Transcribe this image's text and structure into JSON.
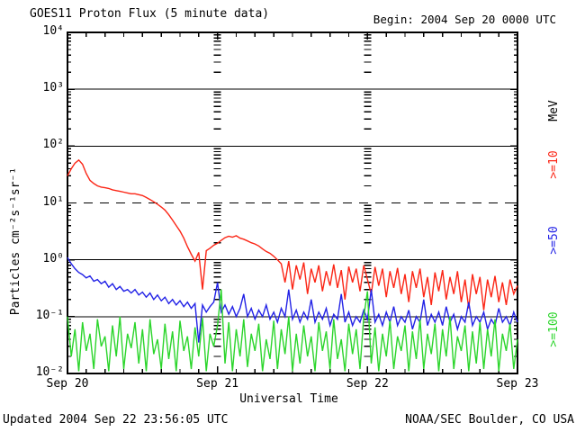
{
  "header": {
    "title": "GOES11 Proton Flux (5 minute data)",
    "begin": "Begin: 2004 Sep 20 0000 UTC"
  },
  "footer": {
    "updated": "Updated 2004 Sep 22 23:56:05 UTC",
    "source": "NOAA/SEC Boulder, CO USA"
  },
  "chart_data": {
    "type": "line",
    "title": "GOES11 Proton Flux (5 minute data)",
    "xlabel": "Universal Time",
    "ylabel": "Particles cm⁻²s⁻¹sr⁻¹",
    "x_axis": {
      "label": "Universal Time",
      "range_days": [
        0,
        3
      ],
      "start_time": "2004 Sep 20 0000 UTC",
      "tick_labels": [
        "Sep 20",
        "Sep 21",
        "Sep 22",
        "Sep 23"
      ],
      "tick_days": [
        0,
        1,
        2,
        3
      ],
      "minor_tick_hours": 3
    },
    "y_axis": {
      "label": "Particles cm⁻²s⁻¹sr⁻¹",
      "scale": "log",
      "range": [
        0.01,
        10000
      ],
      "tick_labels": [
        "10⁴",
        "10³",
        "10²",
        "10¹",
        "10⁰",
        "10⁻¹",
        "10⁻²"
      ],
      "tick_decades": [
        4,
        3,
        2,
        1,
        0,
        -1,
        -2
      ]
    },
    "grid": {
      "solid_decades": [
        3,
        2,
        0,
        -1
      ],
      "dashed_decades": [
        1
      ],
      "vertical_day_lines": [
        1,
        2
      ]
    },
    "legend": {
      "unit_label": "MeV",
      "position": "right",
      "entries": [
        ">=10",
        ">=50",
        ">=100"
      ]
    },
    "frame_color": "#000000",
    "background_color": "#ffffff",
    "sample_step_days": 0.025,
    "series": [
      {
        "name": ">=10",
        "unit": "MeV",
        "color": "#fb2515",
        "values": [
          30,
          40,
          50,
          57,
          48,
          33,
          25,
          22,
          20,
          19,
          18.5,
          18,
          17,
          16.5,
          16,
          15.5,
          15,
          14.5,
          14.5,
          14,
          13.5,
          12.5,
          11.5,
          10.5,
          9.5,
          8.5,
          7.5,
          6.2,
          5.0,
          4.0,
          3.2,
          2.4,
          1.7,
          1.25,
          0.95,
          1.35,
          0.3,
          1.45,
          1.6,
          1.8,
          1.95,
          2.2,
          2.45,
          2.6,
          2.5,
          2.65,
          2.4,
          2.3,
          2.15,
          2.0,
          1.9,
          1.75,
          1.55,
          1.4,
          1.3,
          1.15,
          1.0,
          0.85,
          0.4,
          0.95,
          0.3,
          0.8,
          0.45,
          0.9,
          0.25,
          0.7,
          0.4,
          0.8,
          0.28,
          0.63,
          0.35,
          0.83,
          0.32,
          0.66,
          0.2,
          0.76,
          0.4,
          0.7,
          0.28,
          0.8,
          0.45,
          0.25,
          0.75,
          0.35,
          0.7,
          0.22,
          0.63,
          0.32,
          0.72,
          0.25,
          0.56,
          0.18,
          0.63,
          0.32,
          0.7,
          0.22,
          0.5,
          0.16,
          0.6,
          0.28,
          0.66,
          0.2,
          0.5,
          0.25,
          0.63,
          0.18,
          0.45,
          0.14,
          0.56,
          0.25,
          0.5,
          0.13,
          0.45,
          0.22,
          0.52,
          0.18,
          0.4,
          0.16,
          0.45,
          0.25,
          0.35
        ]
      },
      {
        "name": ">=50",
        "unit": "MeV",
        "color": "#2222e6",
        "values": [
          1.1,
          0.85,
          0.7,
          0.6,
          0.55,
          0.48,
          0.52,
          0.42,
          0.45,
          0.38,
          0.42,
          0.33,
          0.38,
          0.3,
          0.34,
          0.28,
          0.3,
          0.26,
          0.3,
          0.24,
          0.27,
          0.22,
          0.26,
          0.2,
          0.24,
          0.19,
          0.22,
          0.17,
          0.2,
          0.16,
          0.19,
          0.15,
          0.18,
          0.14,
          0.17,
          0.035,
          0.16,
          0.12,
          0.15,
          0.18,
          0.4,
          0.12,
          0.16,
          0.11,
          0.15,
          0.1,
          0.14,
          0.25,
          0.1,
          0.14,
          0.09,
          0.13,
          0.1,
          0.16,
          0.09,
          0.12,
          0.08,
          0.14,
          0.1,
          0.3,
          0.09,
          0.13,
          0.08,
          0.12,
          0.09,
          0.2,
          0.08,
          0.12,
          0.09,
          0.14,
          0.07,
          0.11,
          0.09,
          0.25,
          0.08,
          0.12,
          0.07,
          0.1,
          0.08,
          0.13,
          0.09,
          0.3,
          0.08,
          0.11,
          0.07,
          0.12,
          0.08,
          0.15,
          0.07,
          0.1,
          0.08,
          0.13,
          0.06,
          0.1,
          0.08,
          0.2,
          0.07,
          0.11,
          0.08,
          0.12,
          0.07,
          0.15,
          0.08,
          0.11,
          0.06,
          0.1,
          0.08,
          0.18,
          0.07,
          0.1,
          0.08,
          0.12,
          0.06,
          0.09,
          0.07,
          0.14,
          0.08,
          0.1,
          0.07,
          0.12,
          0.08
        ]
      },
      {
        "name": ">=100",
        "unit": "MeV",
        "color": "#2bd52b",
        "values": [
          0.1,
          0.02,
          0.06,
          0.011,
          0.08,
          0.025,
          0.05,
          0.012,
          0.09,
          0.03,
          0.045,
          0.011,
          0.07,
          0.02,
          0.1,
          0.012,
          0.05,
          0.028,
          0.08,
          0.015,
          0.06,
          0.011,
          0.09,
          0.022,
          0.04,
          0.012,
          0.075,
          0.018,
          0.055,
          0.011,
          0.085,
          0.025,
          0.045,
          0.012,
          0.065,
          0.02,
          0.095,
          0.011,
          0.05,
          0.03,
          0.07,
          0.3,
          0.015,
          0.08,
          0.011,
          0.06,
          0.02,
          0.09,
          0.013,
          0.05,
          0.025,
          0.075,
          0.011,
          0.04,
          0.018,
          0.085,
          0.012,
          0.06,
          0.022,
          0.1,
          0.011,
          0.05,
          0.015,
          0.07,
          0.02,
          0.045,
          0.011,
          0.08,
          0.025,
          0.055,
          0.012,
          0.09,
          0.018,
          0.04,
          0.011,
          0.075,
          0.022,
          0.06,
          0.012,
          0.1,
          0.28,
          0.015,
          0.065,
          0.011,
          0.05,
          0.02,
          0.085,
          0.012,
          0.045,
          0.025,
          0.07,
          0.011,
          0.055,
          0.018,
          0.09,
          0.012,
          0.05,
          0.022,
          0.075,
          0.011,
          0.06,
          0.02,
          0.1,
          0.012,
          0.045,
          0.025,
          0.07,
          0.011,
          0.055,
          0.015,
          0.08,
          0.012,
          0.06,
          0.02,
          0.09,
          0.011,
          0.05,
          0.025,
          0.075,
          0.012,
          0.04
        ]
      }
    ]
  }
}
